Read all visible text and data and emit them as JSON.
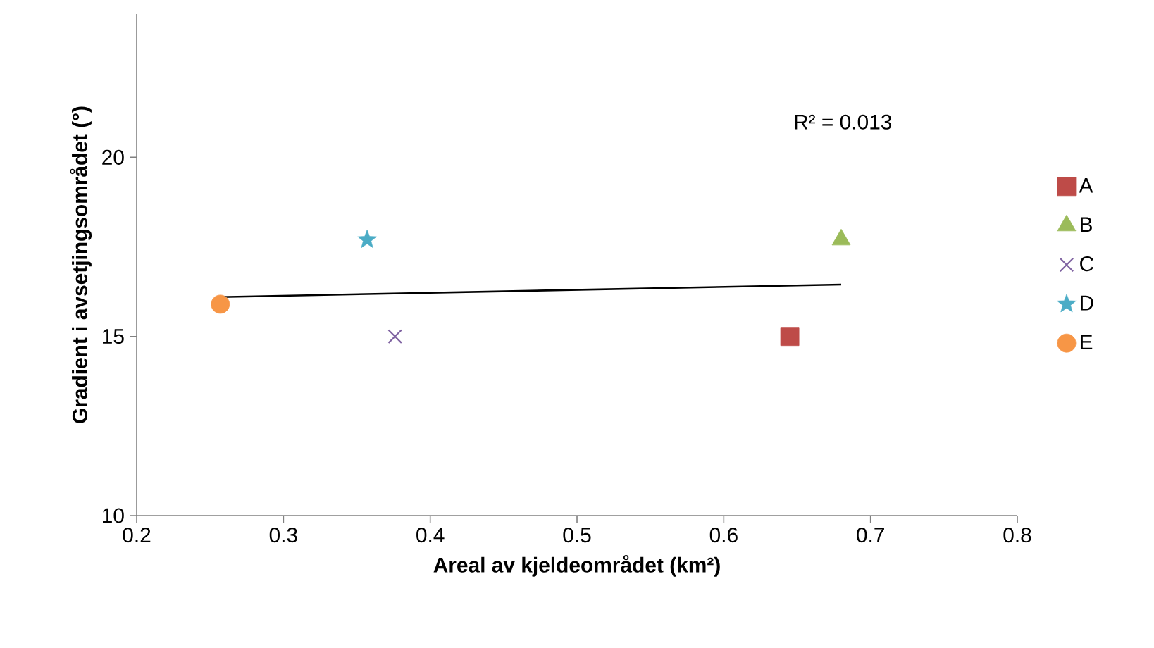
{
  "chart_data": {
    "type": "scatter",
    "xlabel": "Areal av kjeldeområdet (km²)",
    "ylabel": "Gradient i avsetjingsområdet (°)",
    "annotations": [
      "R² = 0.013"
    ],
    "xlim": [
      0.2,
      0.8
    ],
    "ylim": [
      10,
      24
    ],
    "xticks": [
      0.2,
      0.3,
      0.4,
      0.5,
      0.6,
      0.7,
      0.8
    ],
    "yticks": [
      10,
      15,
      20
    ],
    "grid": false,
    "legend": "right",
    "series": [
      {
        "name": "A",
        "color": "#be4b48",
        "marker": "square",
        "x": [
          0.645
        ],
        "values": [
          15.0
        ]
      },
      {
        "name": "B",
        "color": "#9bbb59",
        "marker": "triangle",
        "x": [
          0.68
        ],
        "values": [
          17.7
        ]
      },
      {
        "name": "C",
        "color": "#8064a2",
        "marker": "cross",
        "x": [
          0.376
        ],
        "values": [
          15.0
        ]
      },
      {
        "name": "D",
        "color": "#4bacc6",
        "marker": "star",
        "x": [
          0.357
        ],
        "values": [
          17.7
        ]
      },
      {
        "name": "E",
        "color": "#f79646",
        "marker": "circle",
        "x": [
          0.257
        ],
        "values": [
          15.9
        ]
      },
      {
        "type": "line",
        "color": "#000000",
        "x": [
          0.257,
          0.68
        ],
        "values": [
          16.1,
          16.45
        ]
      }
    ]
  }
}
